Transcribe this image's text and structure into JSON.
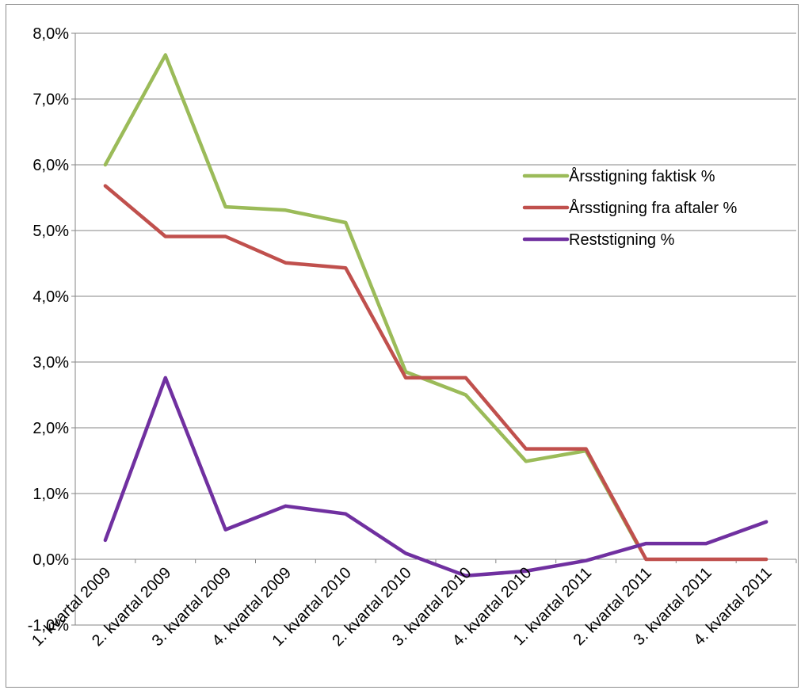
{
  "chart_data": {
    "type": "line",
    "title": "",
    "xlabel": "",
    "ylabel": "",
    "ylim": [
      -0.01,
      0.08
    ],
    "y_ticks": [
      {
        "value": 0.08,
        "label": "8,0%"
      },
      {
        "value": 0.07,
        "label": "7,0%"
      },
      {
        "value": 0.06,
        "label": "6,0%"
      },
      {
        "value": 0.05,
        "label": "5,0%"
      },
      {
        "value": 0.04,
        "label": "4,0%"
      },
      {
        "value": 0.03,
        "label": "3,0%"
      },
      {
        "value": 0.02,
        "label": "2,0%"
      },
      {
        "value": 0.01,
        "label": "1,0%"
      },
      {
        "value": 0.0,
        "label": "0,0%"
      },
      {
        "value": -0.01,
        "label": "-1,0%"
      }
    ],
    "categories": [
      "1. kvartal 2009",
      "2. kvartal 2009",
      "3. kvartal 2009",
      "4. kvartal 2009",
      "1. kvartal 2010",
      "2. kvartal 2010",
      "3. kvartal 2010",
      "4. kvartal 2010",
      "1. kvartal 2011",
      "2. kvartal 2011",
      "3. kvartal 2011",
      "4. kvartal 2011"
    ],
    "grid": true,
    "legend_position": "right",
    "series": [
      {
        "name": "Årsstigning faktisk %",
        "color": "#9bbb59",
        "values": [
          0.06,
          0.0767,
          0.0536,
          0.0531,
          0.0512,
          0.0285,
          0.025,
          0.0149,
          0.0165,
          null,
          null,
          null
        ]
      },
      {
        "name": "Årsstigning fra aftaler %",
        "color": "#c0504d",
        "values": [
          0.0568,
          0.0491,
          0.0491,
          0.0451,
          0.0443,
          0.0276,
          0.0276,
          0.0168,
          0.0168,
          0.0,
          0.0,
          0.0
        ]
      },
      {
        "name": "Reststigning %",
        "color": "#7030a0",
        "values": [
          0.0029,
          0.0276,
          0.0045,
          0.0081,
          0.0069,
          0.0009,
          -0.0025,
          -0.0018,
          -0.0002,
          0.0024,
          0.0024,
          0.0057
        ]
      }
    ]
  }
}
